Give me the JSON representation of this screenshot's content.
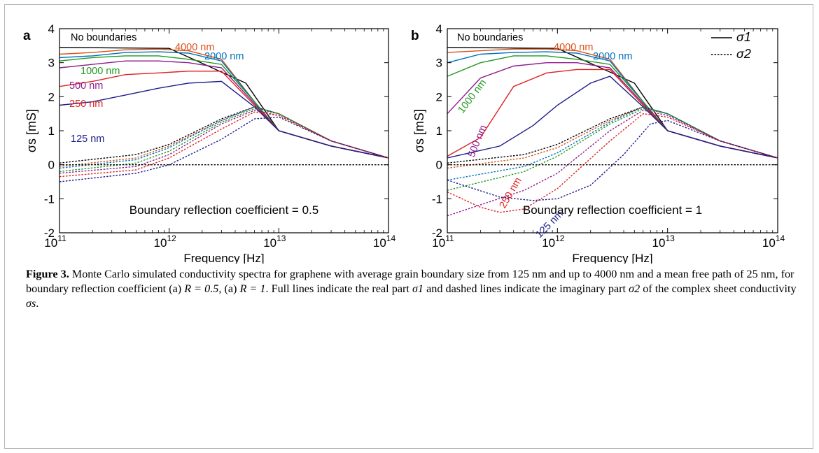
{
  "caption": {
    "label": "Figure 3.",
    "text_1": " Monte Carlo simulated conductivity spectra for graphene with average grain boundary size from 125 nm and up to 4000 nm and a mean free path of 25 nm, for boundary reflection coefficient (a) ",
    "math_1": "R = 0.5",
    "text_2": ", (a) ",
    "math_2": "R = 1",
    "text_3": ". Full lines indicate the real part ",
    "math_3": "σ1",
    "text_4": " and dashed lines indicate the imaginary part ",
    "math_4": "σ2",
    "text_5": " of the complex sheet conductivity ",
    "math_5": "σs",
    "text_6": "."
  },
  "colors": {
    "no_boundaries": "#000000",
    "4000 nm": "#d95319",
    "2000 nm": "#0072bd",
    "1000 nm": "#1f9a1f",
    "500 nm": "#8e1b8e",
    "250 nm": "#e02020",
    "125 nm": "#1c1c8c"
  },
  "chart_data": [
    {
      "panel_label": "a",
      "type": "line",
      "xlabel": "Frequency [Hz]",
      "ylabel": "σs [mS]",
      "xscale": "log",
      "xlim": [
        100000000000.0,
        100000000000000.0
      ],
      "ylim": [
        -2,
        4
      ],
      "x_ticks": [
        "10^11",
        "10^12",
        "10^13",
        "10^14"
      ],
      "y_ticks": [
        "-2",
        "-1",
        "0",
        "1",
        "2",
        "3",
        "4"
      ],
      "annotation": "Boundary reflection coefficient = 0.5",
      "curve_labels": [
        "No boundaries",
        "4000 nm",
        "2000 nm",
        "1000 nm",
        "500 nm",
        "250 nm",
        "125 nm"
      ],
      "series": [
        {
          "name": "No boundaries",
          "part": "σ1",
          "style": "solid",
          "x": [
            100000000000.0,
            1000000000000.0,
            5000000000000.0,
            10000000000000.0,
            30000000000000.0,
            100000000000000.0
          ],
          "values": [
            3.45,
            3.42,
            2.4,
            1.0,
            0.55,
            0.2
          ]
        },
        {
          "name": "4000 nm",
          "part": "σ1",
          "style": "solid",
          "x": [
            100000000000.0,
            200000000000.0,
            400000000000.0,
            800000000000.0,
            1500000000000.0,
            3000000000000.0,
            6000000000000.0,
            10000000000000.0,
            30000000000000.0,
            100000000000000.0
          ],
          "values": [
            3.25,
            3.3,
            3.38,
            3.4,
            3.35,
            3.1,
            1.85,
            1.0,
            0.55,
            0.2
          ]
        },
        {
          "name": "2000 nm",
          "part": "σ1",
          "style": "solid",
          "x": [
            100000000000.0,
            200000000000.0,
            400000000000.0,
            800000000000.0,
            1500000000000.0,
            3000000000000.0,
            6000000000000.0,
            10000000000000.0,
            30000000000000.0,
            100000000000000.0
          ],
          "values": [
            3.15,
            3.2,
            3.3,
            3.32,
            3.28,
            3.05,
            1.85,
            1.0,
            0.55,
            0.2
          ]
        },
        {
          "name": "1000 nm",
          "part": "σ1",
          "style": "solid",
          "x": [
            100000000000.0,
            200000000000.0,
            400000000000.0,
            800000000000.0,
            1500000000000.0,
            3000000000000.0,
            6000000000000.0,
            10000000000000.0,
            30000000000000.0,
            100000000000000.0
          ],
          "values": [
            3.05,
            3.15,
            3.2,
            3.2,
            3.1,
            2.95,
            1.85,
            1.0,
            0.55,
            0.2
          ]
        },
        {
          "name": "500 nm",
          "part": "σ1",
          "style": "solid",
          "x": [
            100000000000.0,
            200000000000.0,
            400000000000.0,
            800000000000.0,
            1500000000000.0,
            3000000000000.0,
            6000000000000.0,
            10000000000000.0,
            30000000000000.0,
            100000000000000.0
          ],
          "values": [
            2.85,
            2.95,
            3.05,
            3.05,
            3.0,
            2.85,
            1.8,
            1.0,
            0.55,
            0.2
          ]
        },
        {
          "name": "250 nm",
          "part": "σ1",
          "style": "solid",
          "x": [
            100000000000.0,
            200000000000.0,
            400000000000.0,
            800000000000.0,
            1500000000000.0,
            3000000000000.0,
            6000000000000.0,
            10000000000000.0,
            30000000000000.0,
            100000000000000.0
          ],
          "values": [
            2.3,
            2.45,
            2.65,
            2.7,
            2.75,
            2.75,
            1.75,
            1.0,
            0.55,
            0.2
          ]
        },
        {
          "name": "125 nm",
          "part": "σ1",
          "style": "solid",
          "x": [
            100000000000.0,
            200000000000.0,
            400000000000.0,
            800000000000.0,
            1500000000000.0,
            3000000000000.0,
            6000000000000.0,
            10000000000000.0,
            30000000000000.0,
            100000000000000.0
          ],
          "values": [
            1.75,
            1.85,
            2.05,
            2.25,
            2.4,
            2.45,
            1.7,
            1.0,
            0.55,
            0.2
          ]
        },
        {
          "name": "No boundaries",
          "part": "σ2",
          "style": "dashed",
          "x": [
            100000000000.0,
            500000000000.0,
            1000000000000.0,
            3000000000000.0,
            6000000000000.0,
            10000000000000.0,
            30000000000000.0,
            100000000000000.0
          ],
          "values": [
            0.05,
            0.3,
            0.6,
            1.35,
            1.7,
            1.5,
            0.7,
            0.2
          ]
        },
        {
          "name": "4000 nm",
          "part": "σ2",
          "style": "dashed",
          "x": [
            100000000000.0,
            500000000000.0,
            1000000000000.0,
            3000000000000.0,
            6000000000000.0,
            10000000000000.0,
            30000000000000.0,
            100000000000000.0
          ],
          "values": [
            -0.05,
            0.2,
            0.55,
            1.3,
            1.7,
            1.5,
            0.7,
            0.2
          ]
        },
        {
          "name": "2000 nm",
          "part": "σ2",
          "style": "dashed",
          "x": [
            100000000000.0,
            500000000000.0,
            1000000000000.0,
            3000000000000.0,
            6000000000000.0,
            10000000000000.0,
            30000000000000.0,
            100000000000000.0
          ],
          "values": [
            -0.1,
            0.15,
            0.5,
            1.3,
            1.7,
            1.5,
            0.7,
            0.2
          ]
        },
        {
          "name": "1000 nm",
          "part": "σ2",
          "style": "dashed",
          "x": [
            100000000000.0,
            500000000000.0,
            1000000000000.0,
            3000000000000.0,
            6000000000000.0,
            10000000000000.0,
            30000000000000.0,
            100000000000000.0
          ],
          "values": [
            -0.2,
            0.05,
            0.4,
            1.25,
            1.65,
            1.5,
            0.7,
            0.2
          ]
        },
        {
          "name": "500 nm",
          "part": "σ2",
          "style": "dashed",
          "x": [
            100000000000.0,
            500000000000.0,
            1000000000000.0,
            3000000000000.0,
            6000000000000.0,
            10000000000000.0,
            30000000000000.0,
            100000000000000.0
          ],
          "values": [
            -0.25,
            -0.05,
            0.3,
            1.2,
            1.6,
            1.45,
            0.7,
            0.2
          ]
        },
        {
          "name": "250 nm",
          "part": "σ2",
          "style": "dashed",
          "x": [
            100000000000.0,
            500000000000.0,
            1000000000000.0,
            3000000000000.0,
            6000000000000.0,
            10000000000000.0,
            30000000000000.0,
            100000000000000.0
          ],
          "values": [
            -0.35,
            -0.15,
            0.2,
            1.05,
            1.55,
            1.45,
            0.7,
            0.2
          ]
        },
        {
          "name": "125 nm",
          "part": "σ2",
          "style": "dashed",
          "x": [
            100000000000.0,
            500000000000.0,
            1000000000000.0,
            3000000000000.0,
            6000000000000.0,
            10000000000000.0,
            30000000000000.0,
            100000000000000.0
          ],
          "values": [
            -0.5,
            -0.25,
            0.0,
            0.75,
            1.35,
            1.4,
            0.7,
            0.2
          ]
        },
        {
          "name": "",
          "part": "zero",
          "style": "dashed",
          "x": [
            100000000000.0,
            100000000000000.0
          ],
          "values": [
            0,
            0
          ]
        }
      ]
    },
    {
      "panel_label": "b",
      "type": "line",
      "xlabel": "Frequency [Hz]",
      "ylabel": "σs [mS]",
      "xscale": "log",
      "xlim": [
        100000000000.0,
        100000000000000.0
      ],
      "ylim": [
        -2,
        4
      ],
      "x_ticks": [
        "10^11",
        "10^12",
        "10^13",
        "10^14"
      ],
      "y_ticks": [
        "-2",
        "-1",
        "0",
        "1",
        "2",
        "3",
        "4"
      ],
      "annotation": "Boundary reflection coefficient = 1",
      "legend": [
        "σ1",
        "σ2"
      ],
      "legend_position": "top-right",
      "curve_labels": [
        "No boundaries",
        "4000 nm",
        "2000 nm",
        "1000 nm",
        "500 nm",
        "250 nm",
        "125 nm"
      ],
      "series": [
        {
          "name": "No boundaries",
          "part": "σ1",
          "style": "solid",
          "x": [
            100000000000.0,
            1000000000000.0,
            5000000000000.0,
            10000000000000.0,
            30000000000000.0,
            100000000000000.0
          ],
          "values": [
            3.45,
            3.42,
            2.4,
            1.0,
            0.55,
            0.2
          ]
        },
        {
          "name": "4000 nm",
          "part": "σ1",
          "style": "solid",
          "x": [
            100000000000.0,
            200000000000.0,
            400000000000.0,
            800000000000.0,
            1500000000000.0,
            3000000000000.0,
            6000000000000.0,
            10000000000000.0,
            30000000000000.0,
            100000000000000.0
          ],
          "values": [
            3.3,
            3.35,
            3.4,
            3.4,
            3.35,
            3.1,
            1.85,
            1.0,
            0.55,
            0.2
          ]
        },
        {
          "name": "2000 nm",
          "part": "σ1",
          "style": "solid",
          "x": [
            100000000000.0,
            200000000000.0,
            400000000000.0,
            800000000000.0,
            1500000000000.0,
            3000000000000.0,
            6000000000000.0,
            10000000000000.0,
            30000000000000.0,
            100000000000000.0
          ],
          "values": [
            3.0,
            3.25,
            3.3,
            3.32,
            3.28,
            3.05,
            1.85,
            1.0,
            0.55,
            0.2
          ]
        },
        {
          "name": "1000 nm",
          "part": "σ1",
          "style": "solid",
          "x": [
            100000000000.0,
            200000000000.0,
            400000000000.0,
            800000000000.0,
            1500000000000.0,
            3000000000000.0,
            6000000000000.0,
            10000000000000.0,
            30000000000000.0,
            100000000000000.0
          ],
          "values": [
            2.6,
            3.0,
            3.2,
            3.2,
            3.1,
            2.95,
            1.85,
            1.0,
            0.55,
            0.2
          ]
        },
        {
          "name": "500 nm",
          "part": "σ1",
          "style": "solid",
          "x": [
            100000000000.0,
            200000000000.0,
            400000000000.0,
            800000000000.0,
            1500000000000.0,
            3000000000000.0,
            6000000000000.0,
            10000000000000.0,
            30000000000000.0,
            100000000000000.0
          ],
          "values": [
            1.5,
            2.55,
            2.9,
            3.0,
            3.0,
            2.85,
            1.8,
            1.0,
            0.55,
            0.2
          ]
        },
        {
          "name": "250 nm",
          "part": "σ1",
          "style": "solid",
          "x": [
            100000000000.0,
            200000000000.0,
            400000000000.0,
            800000000000.0,
            1500000000000.0,
            3000000000000.0,
            6000000000000.0,
            10000000000000.0,
            30000000000000.0,
            100000000000000.0
          ],
          "values": [
            0.25,
            0.8,
            2.3,
            2.7,
            2.8,
            2.8,
            1.75,
            1.0,
            0.55,
            0.2
          ]
        },
        {
          "name": "125 nm",
          "part": "σ1",
          "style": "solid",
          "x": [
            100000000000.0,
            300000000000.0,
            600000000000.0,
            1000000000000.0,
            2000000000000.0,
            3000000000000.0,
            6000000000000.0,
            10000000000000.0,
            30000000000000.0,
            100000000000000.0
          ],
          "values": [
            0.2,
            0.55,
            1.15,
            1.75,
            2.4,
            2.6,
            1.7,
            1.0,
            0.55,
            0.2
          ]
        },
        {
          "name": "No boundaries",
          "part": "σ2",
          "style": "dashed",
          "x": [
            100000000000.0,
            500000000000.0,
            1000000000000.0,
            3000000000000.0,
            6000000000000.0,
            10000000000000.0,
            30000000000000.0,
            100000000000000.0
          ],
          "values": [
            0.05,
            0.3,
            0.6,
            1.35,
            1.7,
            1.5,
            0.7,
            0.2
          ]
        },
        {
          "name": "4000 nm",
          "part": "σ2",
          "style": "dashed",
          "x": [
            100000000000.0,
            500000000000.0,
            1000000000000.0,
            3000000000000.0,
            6000000000000.0,
            10000000000000.0,
            30000000000000.0,
            100000000000000.0
          ],
          "values": [
            -0.1,
            0.2,
            0.5,
            1.3,
            1.7,
            1.5,
            0.7,
            0.2
          ]
        },
        {
          "name": "2000 nm",
          "part": "σ2",
          "style": "dashed",
          "x": [
            100000000000.0,
            500000000000.0,
            1000000000000.0,
            3000000000000.0,
            6000000000000.0,
            10000000000000.0,
            30000000000000.0,
            100000000000000.0
          ],
          "values": [
            -0.45,
            -0.05,
            0.35,
            1.25,
            1.7,
            1.5,
            0.7,
            0.2
          ]
        },
        {
          "name": "1000 nm",
          "part": "σ2",
          "style": "dashed",
          "x": [
            100000000000.0,
            500000000000.0,
            1000000000000.0,
            3000000000000.0,
            6000000000000.0,
            10000000000000.0,
            30000000000000.0,
            100000000000000.0
          ],
          "values": [
            -0.75,
            -0.2,
            0.25,
            1.2,
            1.65,
            1.5,
            0.7,
            0.2
          ]
        },
        {
          "name": "500 nm",
          "part": "σ2",
          "style": "dashed",
          "x": [
            100000000000.0,
            500000000000.0,
            1000000000000.0,
            3000000000000.0,
            6000000000000.0,
            10000000000000.0,
            30000000000000.0,
            100000000000000.0
          ],
          "values": [
            -1.5,
            -0.75,
            -0.25,
            1.0,
            1.6,
            1.45,
            0.7,
            0.2
          ]
        },
        {
          "name": "250 nm",
          "part": "σ2",
          "style": "dashed",
          "x": [
            100000000000.0,
            200000000000.0,
            300000000000.0,
            500000000000.0,
            1000000000000.0,
            3000000000000.0,
            6000000000000.0,
            10000000000000.0,
            30000000000000.0,
            100000000000000.0
          ],
          "values": [
            -0.8,
            -1.25,
            -1.4,
            -1.3,
            -0.7,
            0.7,
            1.5,
            1.4,
            0.7,
            0.2
          ]
        },
        {
          "name": "125 nm",
          "part": "σ2",
          "style": "dashed",
          "x": [
            100000000000.0,
            300000000000.0,
            600000000000.0,
            1000000000000.0,
            2000000000000.0,
            4000000000000.0,
            7000000000000.0,
            10000000000000.0,
            30000000000000.0,
            100000000000000.0
          ],
          "values": [
            -0.45,
            -0.95,
            -1.05,
            -1.0,
            -0.6,
            0.3,
            1.2,
            1.3,
            0.7,
            0.2
          ]
        },
        {
          "name": "",
          "part": "zero",
          "style": "dashed",
          "x": [
            100000000000.0,
            100000000000000.0
          ],
          "values": [
            0,
            0
          ]
        }
      ]
    }
  ]
}
